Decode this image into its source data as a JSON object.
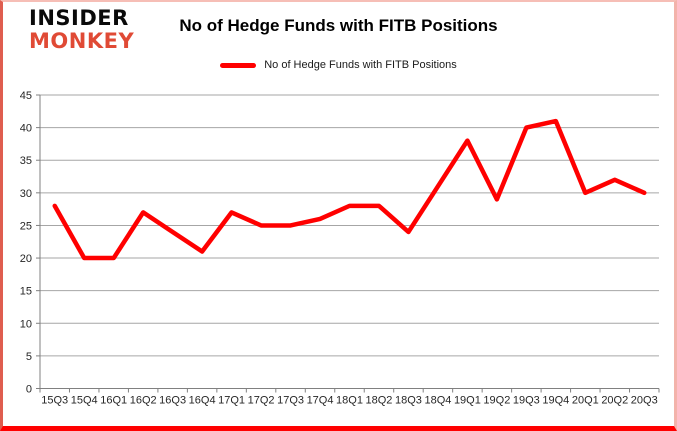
{
  "logo": {
    "line1": "INSIDER",
    "line2": "MONKEY"
  },
  "header": {
    "title": "No of Hedge Funds with FITB Positions"
  },
  "legend": {
    "label": "No of Hedge Funds with FITB Positions"
  },
  "colors": {
    "series": "#ff0000",
    "grid": "#a6a6a6",
    "axis": "#808080",
    "tick_label": "#262626",
    "logo_black": "#0a0a0a",
    "logo_accent": "#e04a35",
    "border_bottom": "#ff0000"
  },
  "chart_data": {
    "type": "line",
    "title": "No of Hedge Funds with FITB Positions",
    "categories": [
      "15Q3",
      "15Q4",
      "16Q1",
      "16Q2",
      "16Q3",
      "16Q4",
      "17Q1",
      "17Q2",
      "17Q3",
      "17Q4",
      "18Q1",
      "18Q2",
      "18Q3",
      "18Q4",
      "19Q1",
      "19Q2",
      "19Q3",
      "19Q4",
      "20Q1",
      "20Q2",
      "20Q3"
    ],
    "values": [
      28,
      20,
      20,
      27,
      24,
      21,
      27,
      25,
      25,
      26,
      28,
      28,
      24,
      31,
      38,
      29,
      40,
      41,
      30,
      32,
      30
    ],
    "xlabel": "",
    "ylabel": "",
    "ylim": [
      0,
      45
    ],
    "ytick_step": 5,
    "grid": true,
    "legend_position": "top",
    "line_width": 4.5,
    "markers": false
  }
}
